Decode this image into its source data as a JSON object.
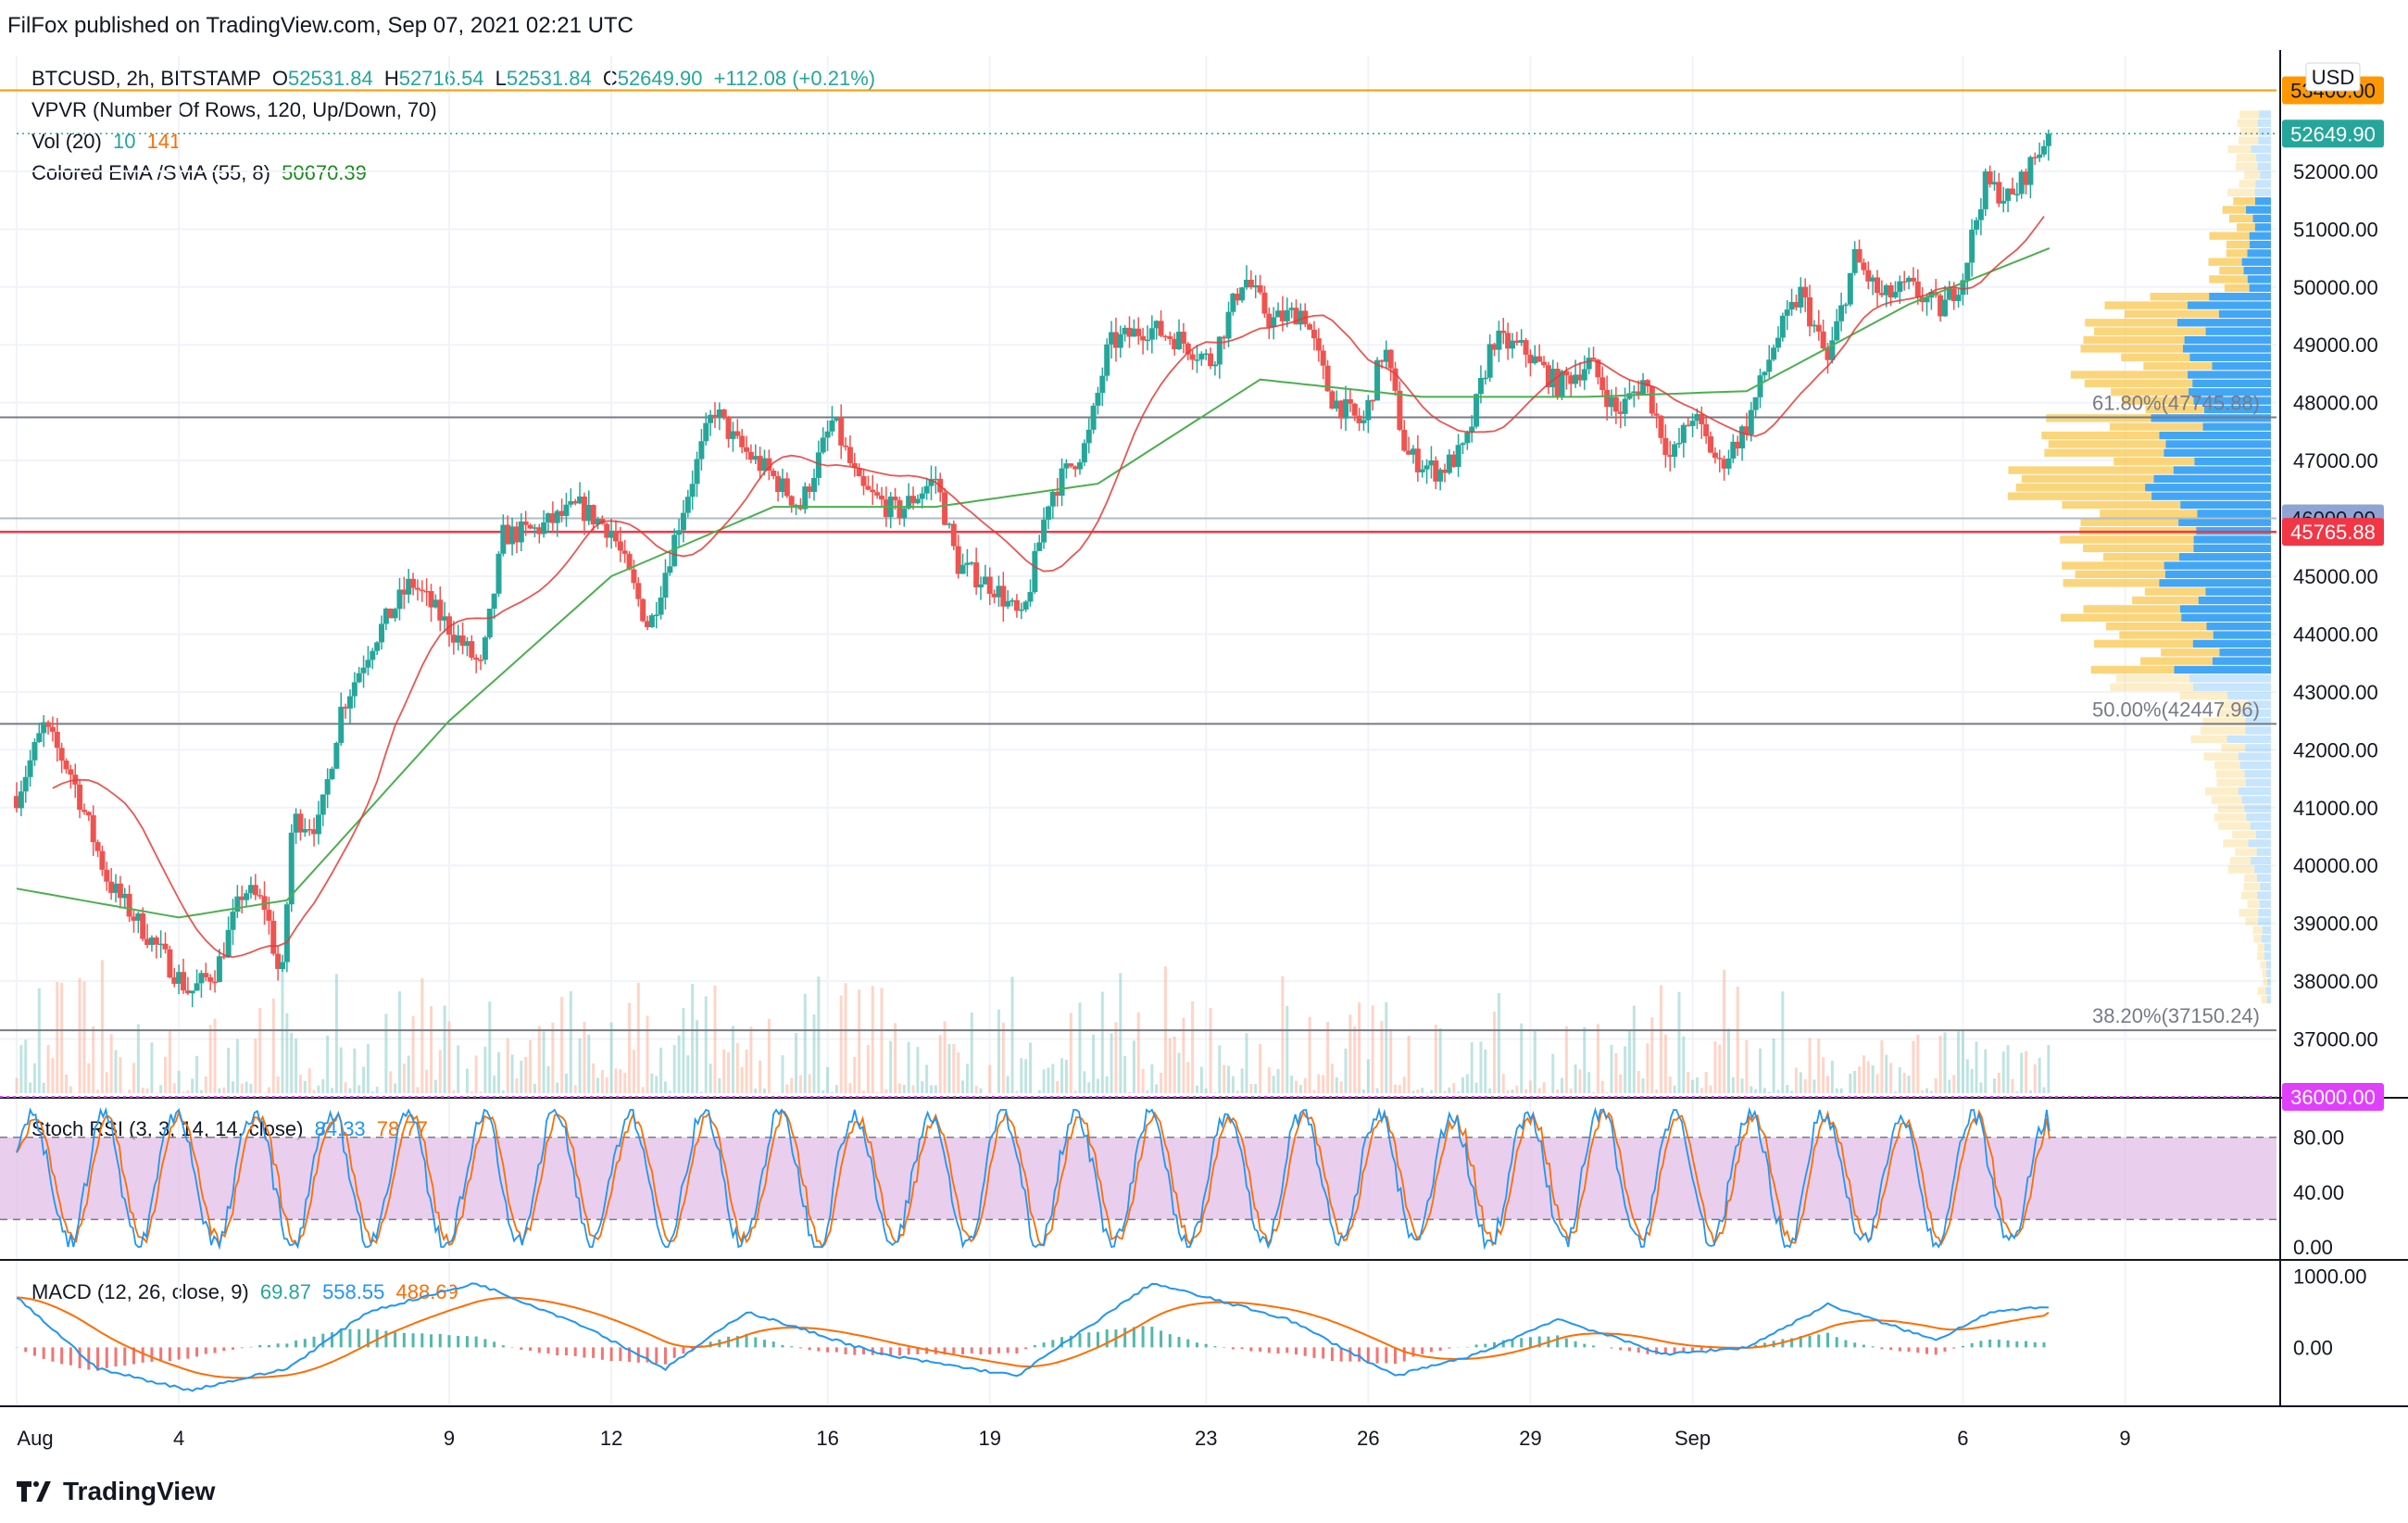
{
  "header": {
    "published": "FilFox published on TradingView.com, Sep 07, 2021 02:21 UTC"
  },
  "legend": {
    "symbol": "BTCUSD, 2h, BITSTAMP",
    "o_label": "O",
    "o": "52531.84",
    "h_label": "H",
    "h": "52716.54",
    "l_label": "L",
    "l": "52531.84",
    "c_label": "C",
    "c": "52649.90",
    "change": "+112.08 (+0.21%)",
    "vpvr": "VPVR (Number Of Rows, 120, Up/Down, 70)",
    "vol": "Vol (20)",
    "vol_v1": "10",
    "vol_v2": "141",
    "ema": "Colored EMA /SMA (55, 8)",
    "ema_value": "50670.39",
    "stoch": "Stoch RSI (3, 3, 14, 14, close)",
    "stoch_k": "84.33",
    "stoch_d": "78.77",
    "macd": "MACD (12, 26, close, 9)",
    "macd_hist": "69.87",
    "macd_line": "558.55",
    "macd_signal": "488.69"
  },
  "footer": {
    "logo_text": "TradingView"
  },
  "colors": {
    "up": "#26a69a",
    "down": "#ef5350",
    "ema": "#4caf50",
    "sma": "#e53935",
    "fib": "#787b86",
    "orange": "#ff9800",
    "red_line": "#f23645",
    "stoch_bg": "#e1bee7",
    "macd_line": "#2196f3",
    "signal_line": "#ff6d00",
    "vp_up": "#2196f3",
    "vp_down": "#f9c74f",
    "magenta": "#e040fb"
  },
  "chart_data": {
    "type": "candlestick",
    "symbol": "BTCUSD",
    "interval": "2h",
    "exchange": "BITSTAMP",
    "currency": "USD",
    "price_ylim": [
      36000,
      54000
    ],
    "price_ticks": [
      37000,
      38000,
      39000,
      40000,
      41000,
      42000,
      43000,
      44000,
      45000,
      46000,
      47000,
      48000,
      49000,
      50000,
      51000,
      52000
    ],
    "price_tick_labels": [
      "37000.00",
      "38000.00",
      "39000.00",
      "40000.00",
      "41000.00",
      "42000.00",
      "43000.00",
      "44000.00",
      "45000.00",
      "46000.00",
      "47000.00",
      "48000.00",
      "49000.00",
      "50000.00",
      "51000.00",
      "52000.00"
    ],
    "x_ticks": [
      {
        "day": 0,
        "label": "Aug"
      },
      {
        "day": 3,
        "label": "4"
      },
      {
        "day": 8,
        "label": "9"
      },
      {
        "day": 11,
        "label": "12"
      },
      {
        "day": 15,
        "label": "16"
      },
      {
        "day": 18,
        "label": "19"
      },
      {
        "day": 22,
        "label": "23"
      },
      {
        "day": 25,
        "label": "26"
      },
      {
        "day": 28,
        "label": "29"
      },
      {
        "day": 31,
        "label": "Sep"
      },
      {
        "day": 36,
        "label": "6"
      },
      {
        "day": 39,
        "label": "9"
      }
    ],
    "x_range_days": [
      0,
      41.8
    ],
    "price_key_points": [
      {
        "day": 0,
        "close": 41200
      },
      {
        "day": 0.5,
        "close": 42400
      },
      {
        "day": 1,
        "close": 41600
      },
      {
        "day": 1.7,
        "close": 39700
      },
      {
        "day": 2.5,
        "close": 38700
      },
      {
        "day": 3.2,
        "close": 37800
      },
      {
        "day": 3.7,
        "close": 38200
      },
      {
        "day": 4.2,
        "close": 39600
      },
      {
        "day": 4.6,
        "close": 39300
      },
      {
        "day": 4.9,
        "close": 37900
      },
      {
        "day": 5.1,
        "close": 40800
      },
      {
        "day": 5.6,
        "close": 40700
      },
      {
        "day": 6.0,
        "close": 42700
      },
      {
        "day": 6.6,
        "close": 43900
      },
      {
        "day": 7.3,
        "close": 44900
      },
      {
        "day": 8.1,
        "close": 44000
      },
      {
        "day": 8.6,
        "close": 43400
      },
      {
        "day": 9.0,
        "close": 45700
      },
      {
        "day": 9.6,
        "close": 45800
      },
      {
        "day": 10.4,
        "close": 46200
      },
      {
        "day": 11.0,
        "close": 45800
      },
      {
        "day": 11.7,
        "close": 44100
      },
      {
        "day": 12.3,
        "close": 46100
      },
      {
        "day": 12.9,
        "close": 47900
      },
      {
        "day": 13.3,
        "close": 47300
      },
      {
        "day": 13.9,
        "close": 46800
      },
      {
        "day": 14.5,
        "close": 46200
      },
      {
        "day": 15.1,
        "close": 47700
      },
      {
        "day": 15.6,
        "close": 46500
      },
      {
        "day": 16.3,
        "close": 46100
      },
      {
        "day": 17.0,
        "close": 46700
      },
      {
        "day": 17.4,
        "close": 45200
      },
      {
        "day": 18.1,
        "close": 44800
      },
      {
        "day": 18.6,
        "close": 44200
      },
      {
        "day": 19.1,
        "close": 46400
      },
      {
        "day": 19.8,
        "close": 47300
      },
      {
        "day": 20.2,
        "close": 49000
      },
      {
        "day": 20.9,
        "close": 49300
      },
      {
        "day": 21.5,
        "close": 49100
      },
      {
        "day": 22.1,
        "close": 48700
      },
      {
        "day": 22.7,
        "close": 50200
      },
      {
        "day": 23.2,
        "close": 49400
      },
      {
        "day": 23.8,
        "close": 49600
      },
      {
        "day": 24.3,
        "close": 48100
      },
      {
        "day": 24.9,
        "close": 47600
      },
      {
        "day": 25.3,
        "close": 49000
      },
      {
        "day": 25.7,
        "close": 47100
      },
      {
        "day": 26.3,
        "close": 46800
      },
      {
        "day": 26.8,
        "close": 47200
      },
      {
        "day": 27.3,
        "close": 49100
      },
      {
        "day": 27.9,
        "close": 48900
      },
      {
        "day": 28.5,
        "close": 48300
      },
      {
        "day": 29.1,
        "close": 48700
      },
      {
        "day": 29.6,
        "close": 47800
      },
      {
        "day": 30.1,
        "close": 48400
      },
      {
        "day": 30.6,
        "close": 47000
      },
      {
        "day": 31.0,
        "close": 47800
      },
      {
        "day": 31.5,
        "close": 46900
      },
      {
        "day": 32.0,
        "close": 47600
      },
      {
        "day": 32.5,
        "close": 49000
      },
      {
        "day": 33.0,
        "close": 49900
      },
      {
        "day": 33.5,
        "close": 48700
      },
      {
        "day": 34.0,
        "close": 50500
      },
      {
        "day": 34.5,
        "close": 49800
      },
      {
        "day": 35.0,
        "close": 50000
      },
      {
        "day": 35.6,
        "close": 49600
      },
      {
        "day": 36.0,
        "close": 50200
      },
      {
        "day": 36.4,
        "close": 51800
      },
      {
        "day": 36.9,
        "close": 51500
      },
      {
        "day": 37.3,
        "close": 52200
      },
      {
        "day": 37.6,
        "close": 52650
      }
    ],
    "ema55_key_points": [
      {
        "day": 0,
        "v": 39600
      },
      {
        "day": 3,
        "v": 39100
      },
      {
        "day": 5,
        "v": 39400
      },
      {
        "day": 8,
        "v": 42500
      },
      {
        "day": 11,
        "v": 45000
      },
      {
        "day": 14,
        "v": 46200
      },
      {
        "day": 17,
        "v": 46200
      },
      {
        "day": 20,
        "v": 46600
      },
      {
        "day": 23,
        "v": 48400
      },
      {
        "day": 26,
        "v": 48100
      },
      {
        "day": 29,
        "v": 48100
      },
      {
        "day": 32,
        "v": 48200
      },
      {
        "day": 35,
        "v": 49700
      },
      {
        "day": 37.6,
        "v": 50670
      }
    ],
    "volume_max": 1500,
    "vpvr_up_max": 0.35,
    "stoch_rsi": {
      "ylim": [
        0,
        100
      ],
      "bands": [
        20,
        80
      ],
      "ticks": [
        0,
        40,
        80
      ],
      "tick_labels": [
        "0.00",
        "40.00",
        "80.00"
      ],
      "k_last": 84.33,
      "d_last": 78.77
    },
    "macd": {
      "ylim": [
        -800,
        1200
      ],
      "ticks": [
        0,
        1000
      ],
      "tick_labels": [
        "0.00",
        "1000.00"
      ],
      "macd_last": 558.55,
      "signal_last": 488.69,
      "hist_last": 69.87,
      "key_points": [
        {
          "day": 0,
          "m": 700
        },
        {
          "day": 1.5,
          "m": -300
        },
        {
          "day": 3.2,
          "m": -600
        },
        {
          "day": 5,
          "m": -300
        },
        {
          "day": 6.5,
          "m": 500
        },
        {
          "day": 8.5,
          "m": 900
        },
        {
          "day": 10.5,
          "m": 300
        },
        {
          "day": 12,
          "m": -300
        },
        {
          "day": 13.5,
          "m": 500
        },
        {
          "day": 16,
          "m": -100
        },
        {
          "day": 18.5,
          "m": -400
        },
        {
          "day": 21,
          "m": 900
        },
        {
          "day": 23.5,
          "m": 400
        },
        {
          "day": 25.5,
          "m": -400
        },
        {
          "day": 27,
          "m": -100
        },
        {
          "day": 28.5,
          "m": 400
        },
        {
          "day": 30.5,
          "m": -100
        },
        {
          "day": 32,
          "m": 0
        },
        {
          "day": 33.5,
          "m": 600
        },
        {
          "day": 35.5,
          "m": 100
        },
        {
          "day": 36.5,
          "m": 500
        },
        {
          "day": 37.6,
          "m": 560
        }
      ]
    },
    "horizontal_lines": [
      {
        "price": 53400,
        "label": "53400.00",
        "color": "orange"
      },
      {
        "price": 47745.88,
        "label": "61.80%(47745.88)",
        "color": "fib"
      },
      {
        "price": 46000,
        "label": "46000.00",
        "color": "blue"
      },
      {
        "price": 45765.88,
        "label": "45765.88",
        "color": "red"
      },
      {
        "price": 42447.96,
        "label": "50.00%(42447.96)",
        "color": "fib"
      },
      {
        "price": 37150.24,
        "label": "38.20%(37150.24)",
        "color": "fib"
      },
      {
        "price": 36000,
        "label": "36000.00",
        "color": "magenta"
      }
    ],
    "last_price": 52649.9,
    "last_price_label": "52649.90",
    "currency_label": "USD"
  }
}
